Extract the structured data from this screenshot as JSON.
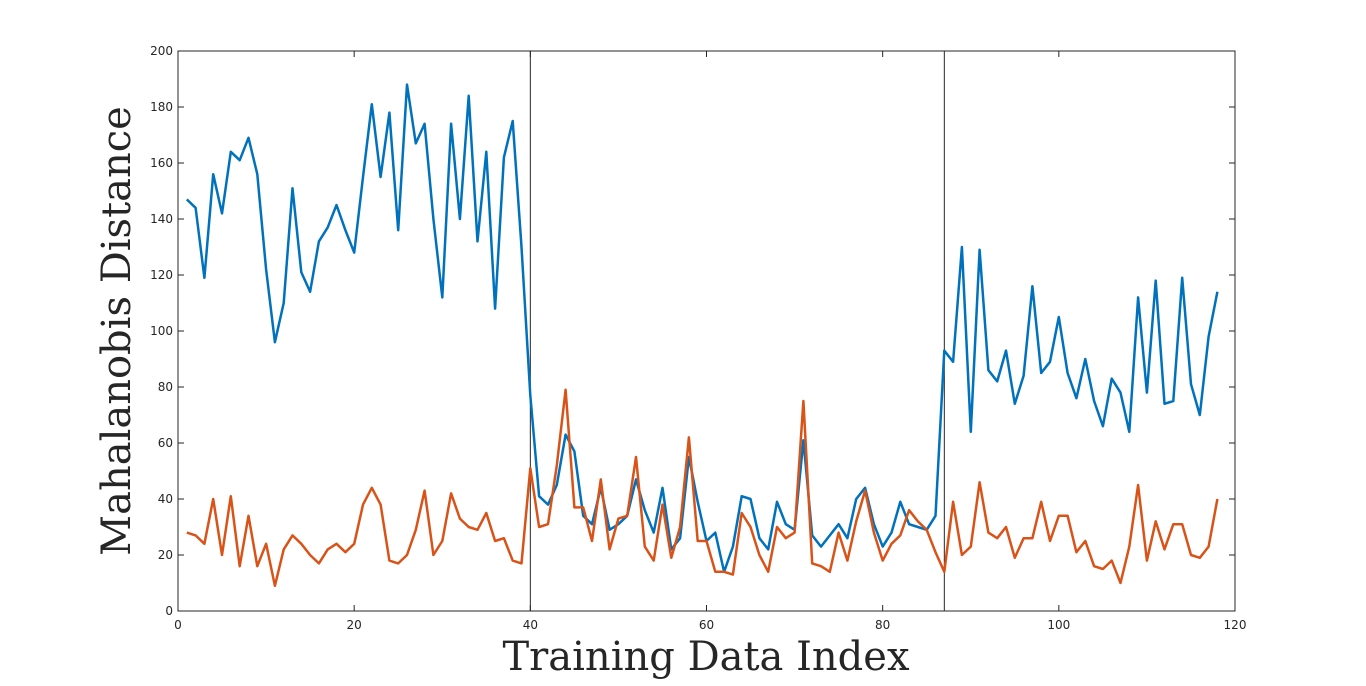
{
  "chart_data": {
    "type": "line",
    "xlabel": "Training Data Index",
    "ylabel": "Mahalanobis Distance",
    "xlim": [
      0,
      120
    ],
    "ylim": [
      0,
      200
    ],
    "xticks": [
      0,
      20,
      40,
      60,
      80,
      100,
      120
    ],
    "yticks": [
      0,
      20,
      40,
      60,
      80,
      100,
      120,
      140,
      160,
      180,
      200
    ],
    "grid": false,
    "vertical_lines": [
      40,
      87
    ],
    "series": [
      {
        "color": "#0072BD",
        "x": [
          1,
          2,
          3,
          4,
          5,
          6,
          7,
          8,
          9,
          10,
          11,
          12,
          13,
          14,
          15,
          16,
          17,
          18,
          19,
          20,
          21,
          22,
          23,
          24,
          25,
          26,
          27,
          28,
          29,
          30,
          31,
          32,
          33,
          34,
          35,
          36,
          37,
          38,
          39,
          40,
          41,
          42,
          43,
          44,
          45,
          46,
          47,
          48,
          49,
          50,
          51,
          52,
          53,
          54,
          55,
          56,
          57,
          58,
          59,
          60,
          61,
          62,
          63,
          64,
          65,
          66,
          67,
          68,
          69,
          70,
          71,
          72,
          73,
          74,
          75,
          76,
          77,
          78,
          79,
          80,
          81,
          82,
          83,
          84,
          85,
          86,
          87,
          88,
          89,
          90,
          91,
          92,
          93,
          94,
          95,
          96,
          97,
          98,
          99,
          100,
          101,
          102,
          103,
          104,
          105,
          106,
          107,
          108,
          109,
          110,
          111,
          112,
          113,
          114,
          115,
          116,
          117,
          118
        ],
        "y": [
          147,
          144,
          119,
          156,
          142,
          164,
          161,
          169,
          156,
          122,
          96,
          110,
          151,
          121,
          114,
          132,
          137,
          145,
          136,
          128,
          155,
          181,
          155,
          178,
          136,
          188,
          167,
          174,
          140,
          112,
          174,
          140,
          184,
          132,
          164,
          108,
          162,
          175,
          130,
          77,
          41,
          38,
          45,
          63,
          57,
          34,
          31,
          44,
          29,
          31,
          34,
          47,
          36,
          28,
          44,
          22,
          26,
          55,
          39,
          25,
          28,
          14,
          23,
          41,
          40,
          26,
          22,
          39,
          31,
          29,
          61,
          27,
          23,
          27,
          31,
          26,
          40,
          44,
          31,
          23,
          28,
          39,
          31,
          30,
          29,
          34,
          93,
          89,
          130,
          64,
          129,
          86,
          82,
          93,
          74,
          84,
          116,
          85,
          89,
          105,
          85,
          76,
          90,
          75,
          66,
          83,
          78,
          64,
          112,
          78,
          118,
          74,
          75,
          119,
          81,
          70,
          98,
          114
        ]
      },
      {
        "color": "#D95319",
        "x": [
          1,
          2,
          3,
          4,
          5,
          6,
          7,
          8,
          9,
          10,
          11,
          12,
          13,
          14,
          15,
          16,
          17,
          18,
          19,
          20,
          21,
          22,
          23,
          24,
          25,
          26,
          27,
          28,
          29,
          30,
          31,
          32,
          33,
          34,
          35,
          36,
          37,
          38,
          39,
          40,
          41,
          42,
          43,
          44,
          45,
          46,
          47,
          48,
          49,
          50,
          51,
          52,
          53,
          54,
          55,
          56,
          57,
          58,
          59,
          60,
          61,
          62,
          63,
          64,
          65,
          66,
          67,
          68,
          69,
          70,
          71,
          72,
          73,
          74,
          75,
          76,
          77,
          78,
          79,
          80,
          81,
          82,
          83,
          84,
          85,
          86,
          87,
          88,
          89,
          90,
          91,
          92,
          93,
          94,
          95,
          96,
          97,
          98,
          99,
          100,
          101,
          102,
          103,
          104,
          105,
          106,
          107,
          108,
          109,
          110,
          111,
          112,
          113,
          114,
          115,
          116,
          117,
          118
        ],
        "y": [
          28,
          27,
          24,
          40,
          20,
          41,
          16,
          34,
          16,
          24,
          9,
          22,
          27,
          24,
          20,
          17,
          22,
          24,
          21,
          24,
          38,
          44,
          38,
          18,
          17,
          20,
          29,
          43,
          20,
          25,
          42,
          33,
          30,
          29,
          35,
          25,
          26,
          18,
          17,
          51,
          30,
          31,
          52,
          79,
          37,
          37,
          25,
          47,
          22,
          33,
          34,
          55,
          23,
          18,
          38,
          19,
          30,
          62,
          25,
          25,
          14,
          14,
          13,
          35,
          30,
          20,
          14,
          30,
          26,
          28,
          75,
          17,
          16,
          14,
          28,
          18,
          32,
          43,
          28,
          18,
          24,
          27,
          36,
          32,
          29,
          21,
          14,
          39,
          20,
          23,
          46,
          28,
          26,
          30,
          19,
          26,
          26,
          39,
          25,
          34,
          34,
          21,
          25,
          16,
          15,
          18,
          10,
          23,
          45,
          18,
          32,
          22,
          31,
          31,
          20,
          19,
          23,
          40
        ]
      }
    ]
  }
}
